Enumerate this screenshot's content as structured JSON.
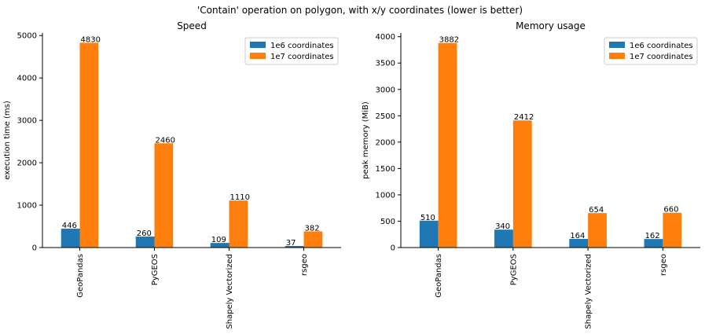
{
  "figure": {
    "suptitle": "'Contain' operation on polygon, with x/y coordinates (lower is better)"
  },
  "chart_data": [
    {
      "type": "bar",
      "title": "Speed",
      "xlabel": "",
      "ylabel": "execution time (ms)",
      "categories": [
        "GeoPandas",
        "PyGEOS",
        "Shapely Vectorized",
        "rsgeo"
      ],
      "series": [
        {
          "name": "1e6 coordinates",
          "color": "#1f77b4",
          "values": [
            446,
            260,
            109,
            37
          ]
        },
        {
          "name": "1e7 coordinates",
          "color": "#ff7f0e",
          "values": [
            4830,
            2460,
            1110,
            382
          ]
        }
      ],
      "ylim": [
        0,
        5060
      ],
      "yticks": [
        0,
        1000,
        2000,
        3000,
        4000,
        5000
      ],
      "legend": "top-right",
      "grid": false
    },
    {
      "type": "bar",
      "title": "Memory usage",
      "xlabel": "",
      "ylabel": "peak memory (MiB)",
      "categories": [
        "GeoPandas",
        "PyGEOS",
        "Shapely Vectorized",
        "rsgeo"
      ],
      "series": [
        {
          "name": "1e6 coordinates",
          "color": "#1f77b4",
          "values": [
            510,
            340,
            164,
            162
          ]
        },
        {
          "name": "1e7 coordinates",
          "color": "#ff7f0e",
          "values": [
            3882,
            2412,
            654,
            660
          ]
        }
      ],
      "ylim": [
        0,
        4070
      ],
      "yticks": [
        0,
        500,
        1000,
        1500,
        2000,
        2500,
        3000,
        3500,
        4000
      ],
      "legend": "top-right",
      "grid": false
    }
  ]
}
